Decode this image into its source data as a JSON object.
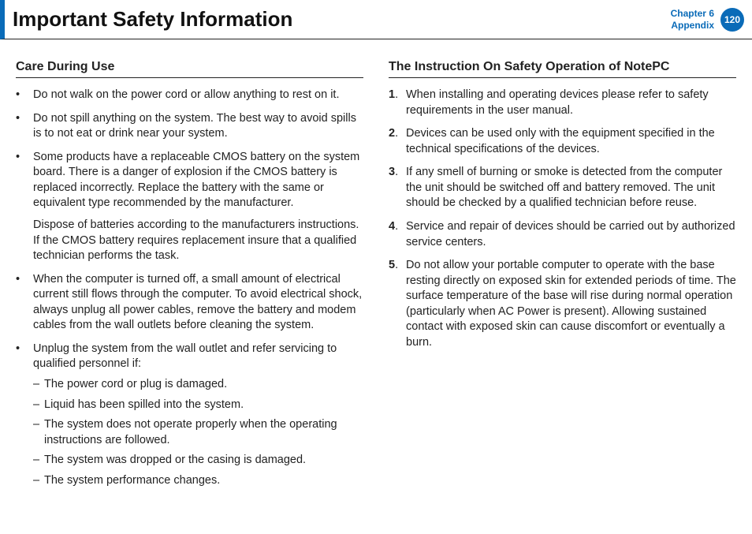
{
  "header": {
    "title": "Important Safety Information",
    "chapter_line1": "Chapter 6",
    "chapter_line2": "Appendix",
    "page_number": "120",
    "accent_color": "#0a6bb8"
  },
  "left": {
    "heading": "Care During Use",
    "items": [
      {
        "text": "Do not walk on the power cord or allow anything to rest on it."
      },
      {
        "text": "Do not spill anything on the system. The best way to avoid spills is to not eat or drink near your system."
      },
      {
        "text": "Some products have a replaceable CMOS battery on the system board. There is a danger of explosion if the CMOS battery is replaced incorrectly. Replace the battery with the same or equivalent type recommended by the manufacturer.",
        "extra": "Dispose of batteries according to the manufacturers instructions. If the CMOS battery requires replacement insure that a qualified technician performs the task."
      },
      {
        "text": "When the computer is turned off, a small amount of electrical current still flows through the computer.\nTo avoid electrical shock, always unplug all power cables, remove the battery and modem cables from the wall outlets before cleaning the system."
      },
      {
        "text": "Unplug the system from the wall outlet and refer servicing to qualified personnel if:",
        "sublist": [
          "The power cord or plug is damaged.",
          "Liquid has been spilled into the system.",
          "The system does not operate properly when the operating instructions are followed.",
          "The system was dropped or the casing is damaged.",
          "The system performance changes."
        ]
      }
    ]
  },
  "right": {
    "heading": "The Instruction On Safety Operation of NotePC",
    "items": [
      {
        "n": "1",
        "text": "When installing and operating devices please refer to safety requirements in the user manual."
      },
      {
        "n": "2",
        "text": "Devices can be used only with the equipment specified in the technical specifications of the devices."
      },
      {
        "n": "3",
        "text": "If any smell of burning or smoke is detected from the computer the unit should be switched off and battery removed. The unit should be checked by a qualified technician before reuse."
      },
      {
        "n": "4",
        "text": "Service and repair of devices should be carried out by authorized service centers."
      },
      {
        "n": "5",
        "text": "Do not allow your portable computer to operate with the base resting directly on exposed skin for extended periods of time. The surface temperature of the base will rise during normal operation (particularly when AC Power is present). Allowing sustained contact with exposed skin can cause discomfort or eventually a burn."
      }
    ]
  }
}
